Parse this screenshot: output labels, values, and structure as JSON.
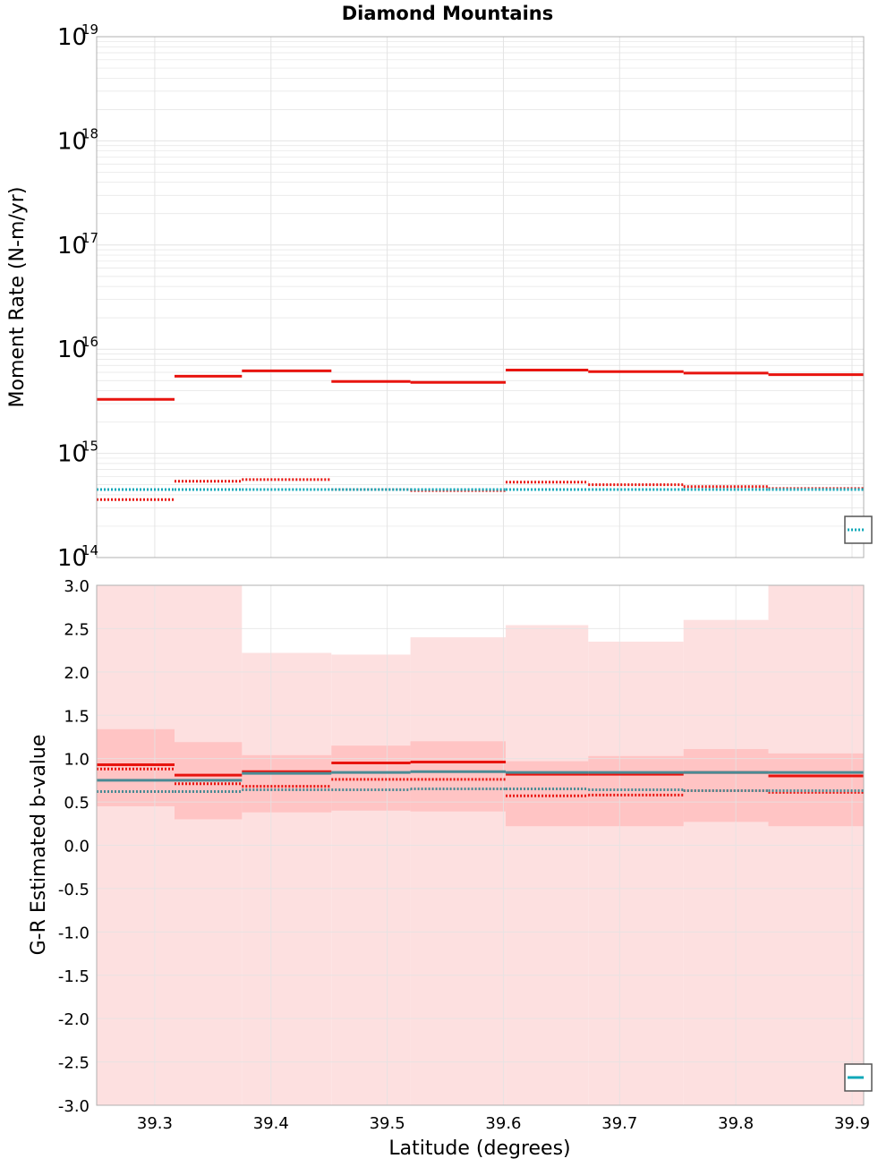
{
  "title": "Diamond Mountains",
  "xlabel": "Latitude (degrees)",
  "x_ticks": [
    "39.3",
    "39.4",
    "39.5",
    "39.6",
    "39.7",
    "39.8",
    "39.9"
  ],
  "x_tick_values": [
    39.3,
    39.4,
    39.5,
    39.6,
    39.7,
    39.8,
    39.9
  ],
  "xlim": [
    39.25,
    39.91
  ],
  "colors": {
    "red": "#e8140f",
    "teal": "#10a8b8",
    "steel": "#4a8a94",
    "band_light": "#fde0e0",
    "band_dark": "#ffc4c4",
    "grid": "#e4e4e4",
    "axes": "#b0b0b0"
  },
  "chart_data": [
    {
      "type": "line",
      "title": "Diamond Mountains",
      "xlabel": "Latitude (degrees)",
      "ylabel": "Moment Rate (N-m/yr)",
      "yscale": "log",
      "ylim": [
        100000000000000.0,
        1e+19
      ],
      "grid": true,
      "y_tick_labels": [
        {
          "base": "10",
          "exp": "14",
          "value": 100000000000000.0
        },
        {
          "base": "10",
          "exp": "15",
          "value": 1000000000000000.0
        },
        {
          "base": "10",
          "exp": "16",
          "value": 1e+16
        },
        {
          "base": "10",
          "exp": "17",
          "value": 1e+17
        },
        {
          "base": "10",
          "exp": "18",
          "value": 1e+18
        },
        {
          "base": "10",
          "exp": "19",
          "value": 1e+19
        }
      ],
      "legend_placement": "bottom-right",
      "segments": [
        39.25,
        39.317,
        39.375,
        39.452,
        39.52,
        39.602,
        39.673,
        39.755,
        39.828,
        39.91
      ],
      "series": [
        {
          "style": "solid",
          "color": "red",
          "values": [
            3300000000000000.0,
            5500000000000000.0,
            6200000000000000.0,
            4900000000000000.0,
            4800000000000000.0,
            6300000000000000.0,
            6100000000000000.0,
            5900000000000000.0,
            5700000000000000.0
          ]
        },
        {
          "style": "dotted",
          "color": "red",
          "values": [
            360000000000000.0,
            540000000000000.0,
            560000000000000.0,
            450000000000000.0,
            440000000000000.0,
            530000000000000.0,
            500000000000000.0,
            480000000000000.0,
            460000000000000.0
          ]
        },
        {
          "style": "dotted",
          "color": "teal",
          "values": [
            450000000000000.0,
            450000000000000.0,
            450000000000000.0,
            450000000000000.0,
            450000000000000.0,
            450000000000000.0,
            450000000000000.0,
            450000000000000.0,
            450000000000000.0
          ]
        }
      ]
    },
    {
      "type": "area",
      "xlabel": "Latitude (degrees)",
      "ylabel": "G-R Estimated b-value",
      "ylim": [
        -3.0,
        3.0
      ],
      "grid": true,
      "y_ticks": [
        "3.0",
        "2.5",
        "2.0",
        "1.5",
        "1.0",
        "0.5",
        "0.0",
        "-0.5",
        "-1.0",
        "-1.5",
        "-2.0",
        "-2.5",
        "-3.0"
      ],
      "y_tick_values": [
        3.0,
        2.5,
        2.0,
        1.5,
        1.0,
        0.5,
        0.0,
        -0.5,
        -1.0,
        -1.5,
        -2.0,
        -2.5,
        -3.0
      ],
      "legend_placement": "bottom-right",
      "segments": [
        39.25,
        39.317,
        39.375,
        39.452,
        39.52,
        39.602,
        39.673,
        39.755,
        39.828,
        39.91
      ],
      "bands": [
        {
          "shade": "band_light",
          "lower": [
            -3.0,
            -3.0,
            -3.0,
            -3.0,
            -3.0,
            -3.0,
            -3.0,
            -3.0,
            -3.0
          ],
          "upper": [
            3.0,
            3.0,
            2.22,
            2.2,
            2.4,
            2.54,
            2.35,
            2.6,
            3.0
          ]
        },
        {
          "shade": "band_dark",
          "lower": [
            0.45,
            0.3,
            0.38,
            0.4,
            0.39,
            0.22,
            0.22,
            0.27,
            0.22
          ],
          "upper": [
            1.34,
            1.19,
            1.04,
            1.15,
            1.2,
            0.97,
            1.03,
            1.11,
            1.06
          ]
        }
      ],
      "series": [
        {
          "style": "solid",
          "color": "red",
          "values": [
            0.93,
            0.81,
            0.85,
            0.95,
            0.96,
            0.82,
            0.82,
            0.84,
            0.8
          ]
        },
        {
          "style": "dotted",
          "color": "red",
          "values": [
            0.88,
            0.71,
            0.68,
            0.76,
            0.76,
            0.57,
            0.58,
            0.63,
            0.61
          ]
        },
        {
          "style": "solid",
          "color": "steel",
          "values": [
            0.75,
            0.75,
            0.83,
            0.84,
            0.85,
            0.84,
            0.84,
            0.84,
            0.84
          ]
        },
        {
          "style": "dotted",
          "color": "steel",
          "values": [
            0.62,
            0.62,
            0.64,
            0.64,
            0.65,
            0.65,
            0.64,
            0.63,
            0.63
          ]
        }
      ]
    }
  ]
}
